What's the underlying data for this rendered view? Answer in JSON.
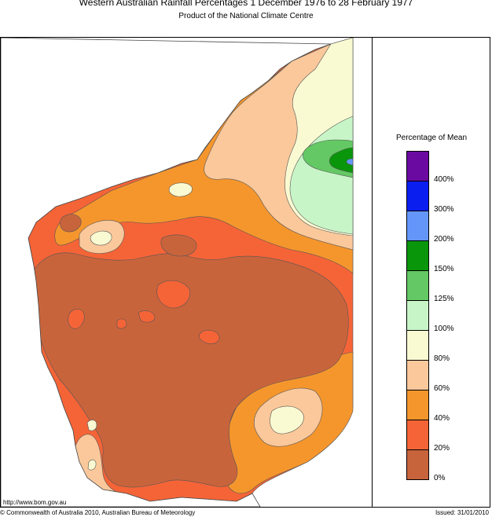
{
  "header": {
    "title": "Western Australian Rainfall Percentages 1 December 1976 to 28 February 1977",
    "subtitle": "Product of the National Climate Centre"
  },
  "legend": {
    "title": "Percentage of Mean",
    "classes": [
      {
        "range": "400% +",
        "color": "#6a0aa0"
      },
      {
        "range": "300-400%",
        "color": "#0a1ef0"
      },
      {
        "range": "200-300%",
        "color": "#6496fa"
      },
      {
        "range": "150-200%",
        "color": "#0a960a"
      },
      {
        "range": "125-150%",
        "color": "#64c864"
      },
      {
        "range": "100-125%",
        "color": "#c8f5c8"
      },
      {
        "range": "80-100%",
        "color": "#fafad2"
      },
      {
        "range": "60-80%",
        "color": "#fac89b"
      },
      {
        "range": "40-60%",
        "color": "#f5962d"
      },
      {
        "range": "20-40%",
        "color": "#f56437"
      },
      {
        "range": "0-20%",
        "color": "#c8643c"
      }
    ],
    "ticks": [
      "400%",
      "300%",
      "200%",
      "150%",
      "125%",
      "100%",
      "80%",
      "60%",
      "40%",
      "20%",
      "0%"
    ]
  },
  "footer": {
    "url": "http://www.bom.gov.au",
    "copyright": "© Commonwealth of Australia 2010, Australian Bureau of Meteorology",
    "issued": "Issued: 31/01/2010"
  }
}
